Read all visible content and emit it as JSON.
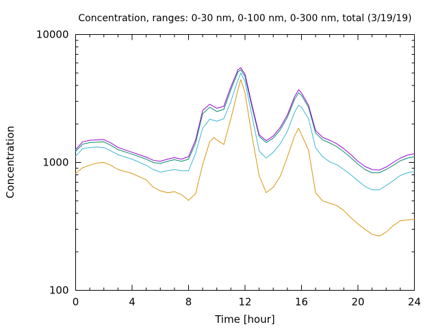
{
  "chart_data": {
    "type": "line",
    "title": "Concentration, ranges: 0-30 nm, 0-100 nm, 0-300 nm, total (3/19/19)",
    "xlabel": "Time [hour]",
    "ylabel": "Concentration",
    "xlim": [
      0,
      24
    ],
    "ylim": [
      100,
      10000
    ],
    "yscale": "log",
    "x_ticks": [
      0,
      4,
      8,
      12,
      16,
      20,
      24
    ],
    "x_tick_labels": [
      "0",
      "4",
      "8",
      "12",
      "16",
      "20",
      "24"
    ],
    "y_ticks": [
      100,
      1000,
      10000
    ],
    "y_tick_labels": [
      "100",
      "1000",
      "10000"
    ],
    "grid": false,
    "legend": "none",
    "series": [
      {
        "color": "#d4960a",
        "x": [
          0,
          0.5,
          1,
          1.5,
          2,
          2.5,
          3,
          4,
          5,
          5.5,
          6,
          6.5,
          7,
          7.5,
          8,
          8.5,
          9,
          9.5,
          9.8,
          10,
          10.5,
          11,
          11.5,
          11.7,
          12,
          12.5,
          13,
          13.5,
          14,
          14.5,
          15,
          15.5,
          15.8,
          16,
          16.5,
          17,
          17.5,
          18,
          18.5,
          19,
          19.5,
          20,
          20.5,
          21,
          21.5,
          22,
          22.5,
          23,
          23.5,
          24
        ],
        "values": [
          820,
          910,
          950,
          990,
          1000,
          950,
          880,
          820,
          730,
          640,
          600,
          580,
          590,
          560,
          505,
          570,
          960,
          1450,
          1570,
          1500,
          1380,
          2200,
          3700,
          4450,
          3500,
          1600,
          790,
          580,
          640,
          780,
          1100,
          1600,
          1850,
          1650,
          1250,
          580,
          500,
          480,
          460,
          420,
          370,
          330,
          300,
          275,
          265,
          285,
          320,
          350,
          355,
          360
        ]
      },
      {
        "color": "#3bb5d4",
        "x": [
          0,
          0.5,
          1,
          1.5,
          2,
          2.5,
          3,
          4,
          5,
          5.5,
          6,
          6.5,
          7,
          7.5,
          8,
          8.5,
          9,
          9.5,
          10,
          10.5,
          11,
          11.5,
          11.7,
          12,
          12.5,
          13,
          13.5,
          14,
          14.5,
          15,
          15.5,
          15.8,
          16,
          16.5,
          17,
          17.5,
          18,
          18.5,
          19,
          19.5,
          20,
          20.5,
          21,
          21.5,
          22,
          22.5,
          23,
          23.5,
          24
        ],
        "values": [
          1120,
          1280,
          1310,
          1320,
          1310,
          1230,
          1150,
          1060,
          950,
          880,
          840,
          860,
          880,
          860,
          860,
          1180,
          1850,
          2180,
          2100,
          2200,
          3000,
          4400,
          5000,
          4300,
          2300,
          1230,
          1080,
          1200,
          1400,
          1750,
          2450,
          2800,
          2700,
          2200,
          1300,
          1110,
          1010,
          960,
          880,
          800,
          720,
          650,
          610,
          610,
          660,
          720,
          790,
          830,
          850
        ]
      },
      {
        "color": "#008b6e",
        "x": [
          0,
          0.5,
          1,
          1.5,
          2,
          2.5,
          3,
          4,
          5,
          5.5,
          6,
          6.5,
          7,
          7.5,
          8,
          8.5,
          9,
          9.5,
          10,
          10.5,
          11,
          11.5,
          11.7,
          12,
          12.5,
          13,
          13.5,
          14,
          14.5,
          15,
          15.5,
          15.8,
          16,
          16.5,
          17,
          17.5,
          18,
          18.5,
          19,
          19.5,
          20,
          20.5,
          21,
          21.5,
          22,
          22.5,
          23,
          23.5,
          24
        ],
        "values": [
          1220,
          1390,
          1430,
          1440,
          1450,
          1360,
          1260,
          1160,
          1060,
          1000,
          980,
          1020,
          1050,
          1020,
          1060,
          1420,
          2400,
          2700,
          2500,
          2600,
          3700,
          5100,
          5300,
          4700,
          2700,
          1600,
          1430,
          1550,
          1800,
          2250,
          3100,
          3500,
          3350,
          2700,
          1700,
          1500,
          1420,
          1330,
          1210,
          1090,
          970,
          880,
          830,
          830,
          880,
          950,
          1030,
          1080,
          1110
        ]
      },
      {
        "color": "#9400d3",
        "x": [
          0,
          0.5,
          1,
          1.5,
          2,
          2.5,
          3,
          4,
          5,
          5.5,
          6,
          6.5,
          7,
          7.5,
          8,
          8.5,
          9,
          9.5,
          10,
          10.5,
          11,
          11.5,
          11.7,
          12,
          12.5,
          13,
          13.5,
          14,
          14.5,
          15,
          15.5,
          15.8,
          16,
          16.5,
          17,
          17.5,
          18,
          18.5,
          19,
          19.5,
          20,
          20.5,
          21,
          21.5,
          22,
          22.5,
          23,
          23.5,
          24
        ],
        "values": [
          1260,
          1450,
          1490,
          1500,
          1510,
          1420,
          1310,
          1200,
          1100,
          1040,
          1020,
          1060,
          1090,
          1060,
          1110,
          1500,
          2550,
          2850,
          2650,
          2750,
          3900,
          5300,
          5500,
          4900,
          2800,
          1650,
          1480,
          1610,
          1880,
          2350,
          3250,
          3700,
          3500,
          2800,
          1780,
          1570,
          1490,
          1400,
          1280,
          1150,
          1020,
          930,
          880,
          870,
          920,
          1000,
          1080,
          1140,
          1170
        ]
      }
    ]
  }
}
